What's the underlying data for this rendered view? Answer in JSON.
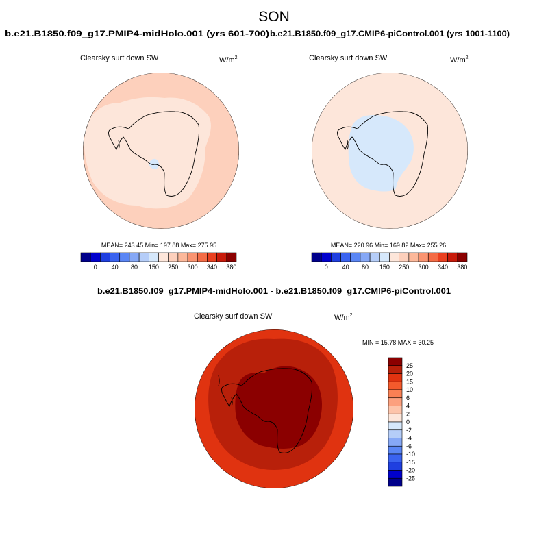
{
  "page": {
    "title": "SON"
  },
  "panels": [
    {
      "id": "midholo",
      "case_title": "b.e21.B1850.f09_g17.PMIP4-midHolo.001 (yrs 601-700)",
      "variable": "Clearsky surf down SW",
      "units_base": "W/m",
      "units_exp": "2",
      "stats": "MEAN= 243.45   Min= 197.88   Max= 275.95",
      "fill_colors": {
        "outer": "#fdd0bc",
        "inner": "#fde6da",
        "small": "#d6e8fb"
      }
    },
    {
      "id": "picontrol",
      "case_title": "b.e21.B1850.f09_g17.CMIP6-piControl.001 (yrs 1001-1100)",
      "variable": "Clearsky surf down SW",
      "units_base": "W/m",
      "units_exp": "2",
      "stats": "MEAN= 220.96   Min= 169.82   Max= 255.26",
      "fill_colors": {
        "outer": "#fde6da",
        "inner": "#d6e8fb",
        "band": "#fde6da"
      }
    }
  ],
  "colorbar_top": {
    "colors": [
      "#00008b",
      "#0000cd",
      "#1f3fe0",
      "#3a63f0",
      "#5a86f5",
      "#86a8f6",
      "#b5cdf8",
      "#d6e8fb",
      "#fde6da",
      "#fdd0bc",
      "#fcb89a",
      "#fa9471",
      "#f46c46",
      "#ea4020",
      "#c81a0a",
      "#8b0000"
    ],
    "tick_labels": [
      "0",
      "40",
      "80",
      "150",
      "250",
      "300",
      "340",
      "380"
    ]
  },
  "diff_panel": {
    "title": "b.e21.B1850.f09_g17.PMIP4-midHolo.001 - b.e21.B1850.f09_g17.CMIP6-piControl.001",
    "variable": "Clearsky surf down SW",
    "units_base": "W/m",
    "units_exp": "2",
    "minmax": "MIN =  15.78  MAX =  30.25",
    "fill_colors": {
      "outer": "#e03310",
      "mid": "#b8200a",
      "inner": "#8b0000"
    }
  },
  "colorbar_diff": {
    "colors": [
      "#8b0000",
      "#b8200a",
      "#e03310",
      "#f45a2c",
      "#fa8054",
      "#fca07e",
      "#fdc4aa",
      "#fde6da",
      "#d6e8fb",
      "#b5cdf8",
      "#86a8f6",
      "#5a86f5",
      "#3a63f0",
      "#1f3fe0",
      "#0000cd",
      "#00008b"
    ],
    "tick_labels": [
      "25",
      "20",
      "15",
      "10",
      "6",
      "4",
      "2",
      "0",
      "-2",
      "-4",
      "-6",
      "-10",
      "-15",
      "-20",
      "-25"
    ]
  }
}
